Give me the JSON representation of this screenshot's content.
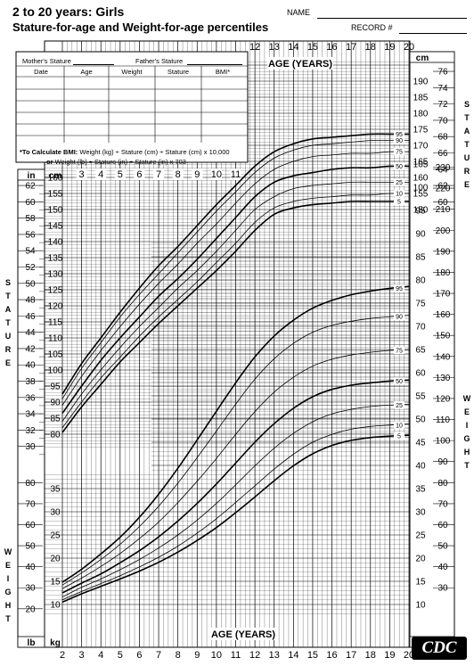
{
  "header": {
    "title": "2 to 20 years: Girls",
    "subtitle": "Stature-for-age and Weight-for-age percentiles",
    "name_label": "NAME",
    "record_label": "RECORD #"
  },
  "form": {
    "mothers_stature": "Mother's Stature",
    "fathers_stature": "Father's Stature",
    "columns": [
      "Date",
      "Age",
      "Weight",
      "Stature",
      "BMI*"
    ],
    "bmi_note_bold": "*To Calculate BMI:",
    "bmi_note_1": "Weight (kg) ÷ Stature (cm) ÷ Stature (cm) x 10,000",
    "bmi_note_2_bold": "or",
    "bmi_note_2": "Weight (lb) ÷ Stature (in) ÷ Stature (in) x 703"
  },
  "side_labels": {
    "stature": [
      "S",
      "T",
      "A",
      "T",
      "U",
      "R",
      "E"
    ],
    "weight": [
      "W",
      "E",
      "I",
      "G",
      "H",
      "T"
    ]
  },
  "logo": "CDC",
  "chart_data": {
    "type": "line",
    "title": "2 to 20 years: Girls Stature-for-age and Weight-for-age percentiles",
    "xlabel": "AGE (YEARS)",
    "x_ticks": [
      2,
      3,
      4,
      5,
      6,
      7,
      8,
      9,
      10,
      11,
      12,
      13,
      14,
      15,
      16,
      17,
      18,
      19,
      20
    ],
    "top_age_ticks": [
      12,
      13,
      14,
      15,
      16,
      17,
      18,
      19,
      20
    ],
    "mid_age_ticks": [
      3,
      4,
      5,
      6,
      7,
      8,
      9,
      10,
      11
    ],
    "units": {
      "cm": "cm",
      "in": "in",
      "kg": "kg",
      "lb": "lb"
    },
    "stature_axis": {
      "ylabel": "STATURE",
      "cm_ticks_left": [
        80,
        85,
        90,
        95,
        100,
        105,
        110,
        115,
        120,
        125,
        130,
        135,
        140,
        145,
        150,
        155,
        160
      ],
      "cm_ticks_right": [
        150,
        155,
        160,
        165,
        170,
        175,
        180,
        185,
        190
      ],
      "in_ticks_left": [
        30,
        32,
        34,
        36,
        38,
        40,
        42,
        44,
        46,
        48,
        50,
        52,
        54,
        56,
        58,
        60,
        62
      ],
      "in_ticks_right": [
        60,
        62,
        64,
        66,
        68,
        70,
        72,
        74,
        76
      ]
    },
    "weight_axis": {
      "ylabel": "WEIGHT",
      "kg_ticks_left": [
        10,
        15,
        20,
        25,
        30,
        35
      ],
      "kg_ticks_right": [
        10,
        15,
        20,
        25,
        30,
        35,
        40,
        45,
        50,
        55,
        60,
        65,
        70,
        75,
        80,
        85,
        90,
        95,
        100,
        105
      ],
      "lb_ticks_left": [
        20,
        30,
        40,
        50,
        60,
        70,
        80
      ],
      "lb_ticks_right": [
        30,
        40,
        50,
        60,
        70,
        80,
        90,
        100,
        110,
        120,
        130,
        140,
        150,
        160,
        170,
        180,
        190,
        200,
        210,
        220,
        230
      ]
    },
    "percentiles": [
      "5",
      "10",
      "25",
      "50",
      "75",
      "90",
      "95"
    ],
    "x": [
      2,
      3,
      4,
      5,
      6,
      7,
      8,
      9,
      10,
      11,
      12,
      13,
      14,
      15,
      16,
      17,
      18,
      19,
      20
    ],
    "stature_series": [
      {
        "name": "5",
        "values": [
          80.5,
          88.5,
          95.5,
          102.5,
          108.5,
          114.5,
          120.0,
          125.5,
          131.0,
          137.0,
          143.5,
          148.5,
          150.5,
          151.5,
          152.0,
          152.5,
          152.5,
          152.5,
          152.5
        ]
      },
      {
        "name": "10",
        "values": [
          82.0,
          90.0,
          97.5,
          104.0,
          110.5,
          116.5,
          122.0,
          127.5,
          133.5,
          139.5,
          146.0,
          150.5,
          152.5,
          153.5,
          154.0,
          154.5,
          154.5,
          155.0,
          155.0
        ]
      },
      {
        "name": "25",
        "values": [
          84.0,
          92.5,
          100.0,
          107.0,
          113.5,
          119.5,
          125.5,
          131.0,
          137.0,
          143.5,
          150.0,
          154.0,
          156.5,
          157.5,
          158.0,
          158.5,
          158.5,
          158.5,
          158.5
        ]
      },
      {
        "name": "50",
        "values": [
          86.5,
          95.0,
          103.0,
          110.0,
          116.5,
          123.0,
          128.5,
          134.5,
          141.0,
          147.5,
          154.0,
          158.5,
          160.5,
          161.5,
          162.5,
          163.0,
          163.0,
          163.5,
          163.5
        ]
      },
      {
        "name": "75",
        "values": [
          89.0,
          98.0,
          106.0,
          113.5,
          120.5,
          127.0,
          133.0,
          139.5,
          145.5,
          152.0,
          158.0,
          162.5,
          165.0,
          166.5,
          167.0,
          167.5,
          167.5,
          168.0,
          168.0
        ]
      },
      {
        "name": "90",
        "values": [
          91.0,
          100.5,
          108.5,
          116.5,
          123.5,
          130.0,
          136.5,
          143.0,
          149.5,
          155.5,
          161.5,
          166.0,
          168.5,
          170.0,
          170.5,
          171.0,
          171.5,
          171.5,
          171.5
        ]
      },
      {
        "name": "95",
        "values": [
          92.5,
          102.0,
          110.0,
          118.0,
          125.5,
          132.5,
          138.5,
          145.0,
          151.5,
          157.5,
          163.5,
          168.0,
          170.5,
          172.0,
          172.5,
          173.0,
          173.5,
          173.5,
          173.5
        ]
      }
    ],
    "weight_series": [
      {
        "name": "5",
        "values": [
          10.5,
          12.3,
          13.9,
          15.5,
          17.2,
          19.1,
          21.3,
          23.8,
          26.6,
          29.8,
          33.2,
          36.7,
          39.9,
          42.5,
          44.3,
          45.4,
          46.0,
          46.3,
          46.5
        ]
      },
      {
        "name": "10",
        "values": [
          11.0,
          12.8,
          14.5,
          16.2,
          18.1,
          20.2,
          22.6,
          25.4,
          28.5,
          32.0,
          35.6,
          39.2,
          42.4,
          45.0,
          46.7,
          47.8,
          48.4,
          48.7,
          48.9
        ]
      },
      {
        "name": "25",
        "values": [
          11.6,
          13.7,
          15.5,
          17.5,
          19.7,
          22.2,
          25.0,
          28.2,
          31.8,
          35.8,
          39.9,
          43.7,
          46.9,
          49.4,
          51.1,
          52.1,
          52.7,
          53.0,
          53.2
        ]
      },
      {
        "name": "50",
        "values": [
          12.5,
          14.6,
          16.6,
          19.0,
          21.6,
          24.6,
          28.0,
          31.8,
          36.0,
          40.5,
          45.0,
          49.0,
          52.3,
          54.8,
          56.4,
          57.3,
          57.8,
          58.2,
          58.4
        ]
      },
      {
        "name": "75",
        "values": [
          13.4,
          15.7,
          18.2,
          21.0,
          24.2,
          27.8,
          32.0,
          36.6,
          41.5,
          46.7,
          51.6,
          55.8,
          59.0,
          61.4,
          62.9,
          63.8,
          64.4,
          64.8,
          65.0
        ]
      },
      {
        "name": "90",
        "values": [
          14.2,
          16.8,
          19.7,
          23.0,
          26.8,
          31.2,
          36.2,
          41.7,
          47.4,
          53.2,
          58.6,
          63.0,
          66.3,
          68.7,
          70.2,
          71.1,
          71.7,
          72.1,
          72.4
        ]
      },
      {
        "name": "95",
        "values": [
          14.8,
          17.6,
          20.9,
          24.5,
          28.8,
          33.8,
          39.4,
          45.5,
          51.7,
          57.8,
          63.4,
          67.9,
          71.3,
          73.9,
          75.6,
          76.8,
          77.6,
          78.2,
          78.6
        ]
      }
    ]
  }
}
